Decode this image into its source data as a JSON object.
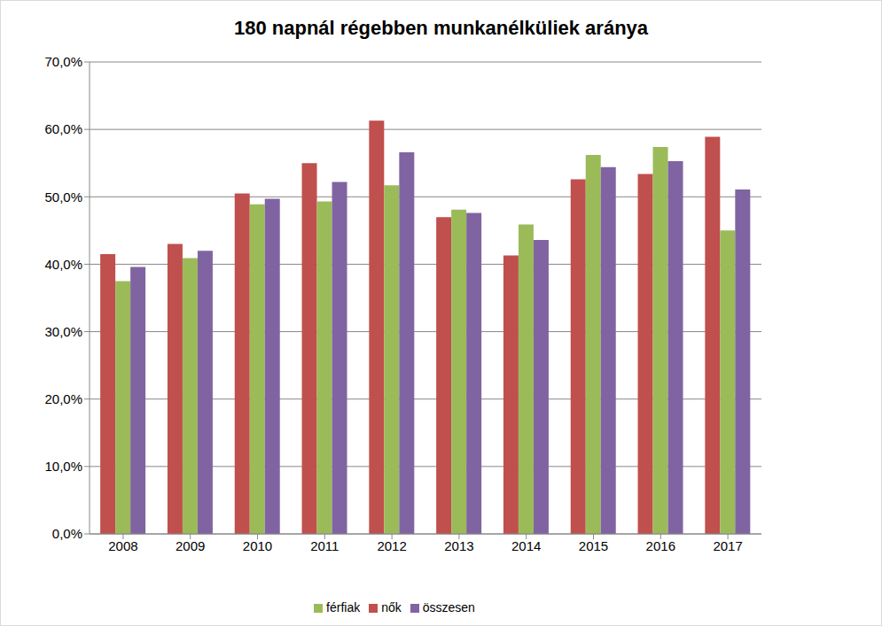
{
  "chart_data": {
    "type": "bar",
    "title": "180 napnál régebben munkanélküliek aránya",
    "categories": [
      "2008",
      "2009",
      "2010",
      "2011",
      "2012",
      "2013",
      "2014",
      "2015",
      "2016",
      "2017"
    ],
    "series": [
      {
        "name": "nők",
        "color": "#c0504d",
        "values": [
          41.5,
          43.0,
          50.5,
          55.0,
          61.3,
          47.0,
          41.3,
          52.6,
          53.4,
          58.9
        ]
      },
      {
        "name": "férfiak",
        "color": "#9bbb59",
        "values": [
          37.5,
          40.9,
          48.9,
          49.3,
          51.7,
          48.1,
          45.9,
          56.2,
          57.4,
          45.0
        ]
      },
      {
        "name": "összesen",
        "color": "#8064a2",
        "values": [
          39.6,
          42.0,
          49.7,
          52.2,
          56.6,
          47.6,
          43.6,
          54.4,
          55.3,
          51.1
        ]
      }
    ],
    "ylim": [
      0,
      70
    ],
    "yticks": [
      {
        "value": 0,
        "label": "0,0%"
      },
      {
        "value": 10,
        "label": "10,0%"
      },
      {
        "value": 20,
        "label": "20,0%"
      },
      {
        "value": 30,
        "label": "30,0%"
      },
      {
        "value": 40,
        "label": "40,0%"
      },
      {
        "value": 50,
        "label": "50,0%"
      },
      {
        "value": 60,
        "label": "60,0%"
      },
      {
        "value": 70,
        "label": "70,0%"
      }
    ],
    "grid": true,
    "legend": "bottom"
  }
}
